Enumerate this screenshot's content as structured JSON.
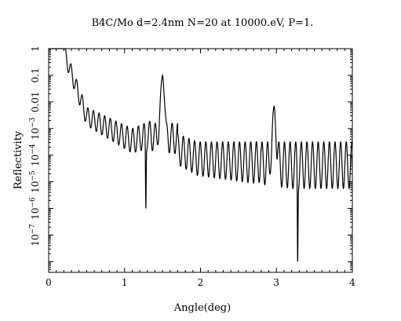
{
  "chart_data": {
    "type": "line",
    "title": "B4C/Mo d=2.4nm N=20 at 10000.eV, P=1.",
    "xlabel": "Angle(deg)",
    "ylabel": "Reflectivity",
    "xlim": [
      0,
      4
    ],
    "ylim_log10": [
      -8.4,
      0
    ],
    "y_scale": "log",
    "grid": false,
    "x_ticks": [
      {
        "value": 0,
        "label": "0"
      },
      {
        "value": 1,
        "label": "1"
      },
      {
        "value": 2,
        "label": "2"
      },
      {
        "value": 3,
        "label": "3"
      },
      {
        "value": 4,
        "label": "4"
      }
    ],
    "y_ticks": [
      {
        "exp": 0,
        "base": "1",
        "sup": ""
      },
      {
        "exp": -1,
        "base": "0.1",
        "sup": ""
      },
      {
        "exp": -2,
        "base": "0.01",
        "sup": ""
      },
      {
        "exp": -3,
        "base": "10",
        "sup": "−3"
      },
      {
        "exp": -4,
        "base": "10",
        "sup": "−4"
      },
      {
        "exp": -5,
        "base": "10",
        "sup": "−5"
      },
      {
        "exp": -6,
        "base": "10",
        "sup": "−6"
      },
      {
        "exp": -7,
        "base": "10",
        "sup": "−7"
      }
    ],
    "series": [
      {
        "color": "#000000",
        "features": {
          "critical_angle_deg": 0.22,
          "bragg_peaks": [
            {
              "x": 1.5,
              "reflectivity": 0.1
            },
            {
              "x": 2.97,
              "reflectivity": 0.007
            }
          ],
          "kiessig_fringe_spacing_deg": 0.074,
          "notable_dips": [
            {
              "x": 1.28,
              "reflectivity": 1e-06
            },
            {
              "x": 3.28,
              "reflectivity": 1e-08
            }
          ]
        }
      }
    ]
  }
}
